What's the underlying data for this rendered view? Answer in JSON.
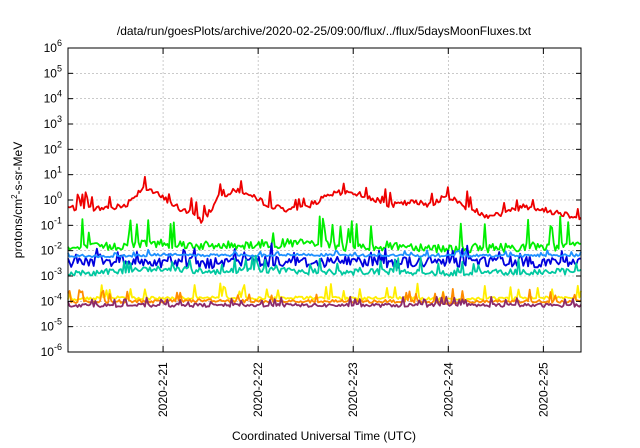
{
  "chart_data": {
    "type": "line",
    "title": "/data/run/goesPlots/archive/2020-02-25/09:00/flux/../flux/5daysMoonFluxes.txt",
    "xlabel": "Coordinated Universal Time (UTC)",
    "ylabel_main": "protons/cm",
    "ylabel_sup": "2",
    "ylabel_rest": "-s-sr-MeV",
    "yscale": "log",
    "ylim_exp": [
      -6,
      6
    ],
    "ytick_base": "10",
    "ytick_exponents": [
      "6",
      "5",
      "4",
      "3",
      "2",
      "1",
      "0",
      "-1",
      "-2",
      "-3",
      "-4",
      "-5",
      "-6"
    ],
    "xlim_days": [
      "2020-02-20 00:00",
      "2020-02-25 09:30"
    ],
    "xtick_labels": [
      "2020-2-21",
      "2020-2-22",
      "2020-2-23",
      "2020-2-24",
      "2020-2-25"
    ],
    "grid": true,
    "legend": "none",
    "series": [
      {
        "color": "#ee0000",
        "x_day_offset": [
          0.0,
          0.3,
          0.6,
          0.8,
          1.0,
          1.2,
          1.3,
          1.4,
          1.5,
          1.6,
          1.8,
          2.0,
          2.2,
          2.4,
          2.6,
          2.8,
          3.0,
          3.2,
          3.4,
          3.6,
          3.8,
          4.0,
          4.2,
          4.4,
          4.6,
          4.8,
          5.0,
          5.2,
          5.39
        ],
        "y": [
          0.5,
          0.45,
          0.6,
          3.5,
          1.2,
          0.4,
          0.3,
          0.15,
          0.4,
          1.5,
          2.5,
          1.0,
          0.5,
          0.4,
          0.8,
          1.8,
          2.0,
          1.2,
          0.6,
          0.8,
          0.7,
          1.4,
          0.5,
          0.25,
          0.3,
          0.6,
          0.4,
          0.3,
          0.2
        ]
      },
      {
        "color": "#00ee00",
        "x_day_offset": [
          0.0,
          0.5,
          1.0,
          1.5,
          2.0,
          2.5,
          3.0,
          3.5,
          4.0,
          4.5,
          5.0,
          5.39
        ],
        "y": [
          0.012,
          0.015,
          0.02,
          0.015,
          0.018,
          0.02,
          0.014,
          0.016,
          0.012,
          0.013,
          0.015,
          0.015
        ]
      },
      {
        "color": "#0000dd",
        "x_day_offset": [
          0.0,
          0.5,
          1.0,
          1.5,
          2.0,
          2.5,
          3.0,
          3.5,
          4.0,
          4.5,
          5.0,
          5.39
        ],
        "y": [
          0.0035,
          0.004,
          0.0035,
          0.003,
          0.004,
          0.0035,
          0.004,
          0.0035,
          0.0035,
          0.004,
          0.0035,
          0.004
        ]
      },
      {
        "color": "#1e90ff",
        "x_day_offset": [
          0.0,
          0.5,
          1.0,
          1.5,
          2.0,
          2.5,
          3.0,
          3.5,
          4.0,
          4.5,
          5.0,
          5.39
        ],
        "y": [
          0.006,
          0.006,
          0.007,
          0.0065,
          0.0065,
          0.007,
          0.0065,
          0.0065,
          0.0062,
          0.0065,
          0.0065,
          0.0065
        ]
      },
      {
        "color": "#00c8a0",
        "x_day_offset": [
          0.0,
          0.5,
          1.0,
          1.5,
          2.0,
          2.5,
          3.0,
          3.5,
          4.0,
          4.5,
          5.0,
          5.39
        ],
        "y": [
          0.0012,
          0.0015,
          0.002,
          0.0015,
          0.0018,
          0.0015,
          0.0014,
          0.0015,
          0.0013,
          0.0014,
          0.0015,
          0.0015
        ]
      },
      {
        "color": "#ffee00",
        "x_day_offset": [
          0.0,
          0.5,
          1.0,
          1.5,
          2.0,
          2.5,
          3.0,
          3.5,
          4.0,
          4.5,
          5.0,
          5.39
        ],
        "y": [
          0.00012,
          0.00014,
          0.00013,
          0.00015,
          0.00013,
          0.00014,
          0.00013,
          0.00014,
          0.00012,
          0.00013,
          0.00014,
          0.00014
        ]
      },
      {
        "color": "#ff8c00",
        "x_day_offset": [
          0.0,
          0.5,
          1.0,
          1.5,
          2.0,
          2.5,
          3.0,
          3.5,
          4.0,
          4.5,
          5.0,
          5.39
        ],
        "y": [
          9e-05,
          0.0001,
          0.0001,
          0.00011,
          0.0001,
          0.0001,
          0.0001,
          0.0001,
          9e-05,
          0.0001,
          0.0001,
          0.0001
        ]
      },
      {
        "color": "#8b2a6a",
        "x_day_offset": [
          0.0,
          0.5,
          1.0,
          1.5,
          2.0,
          2.5,
          3.0,
          3.5,
          4.0,
          4.5,
          5.0,
          5.39
        ],
        "y": [
          7e-05,
          7e-05,
          7e-05,
          7e-05,
          7e-05,
          7e-05,
          7e-05,
          7e-05,
          7e-05,
          7e-05,
          7e-05,
          7e-05
        ]
      }
    ]
  }
}
